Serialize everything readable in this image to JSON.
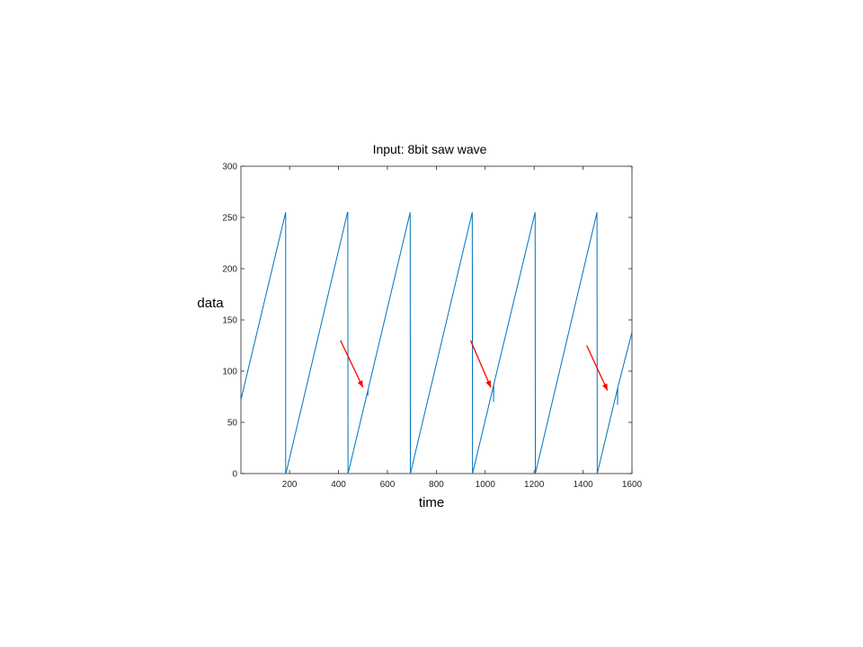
{
  "chart_data": {
    "type": "line",
    "title": "Input:  8bit saw wave",
    "xlabel": "time",
    "ylabel": "data",
    "xlim": [
      1,
      1600
    ],
    "ylim": [
      0,
      300
    ],
    "xticks": [
      200,
      400,
      600,
      800,
      1000,
      1200,
      1400,
      1600
    ],
    "yticks": [
      0,
      50,
      100,
      150,
      200,
      250,
      300
    ],
    "grid": false,
    "series": [
      {
        "color": "#0072bd",
        "x": [
          1,
          184,
          184,
          186,
          437,
          438,
          439,
          520,
          520,
          521,
          693,
          694,
          695,
          947,
          948,
          949,
          1034,
          1034,
          1035,
          1204,
          1205,
          1206,
          1457,
          1458,
          1459,
          1541,
          1541,
          1542,
          1600
        ],
        "y": [
          72,
          255,
          0,
          1,
          255,
          255,
          0,
          81,
          76,
          82,
          255,
          0,
          1,
          255,
          0,
          1,
          86,
          70,
          87,
          255,
          0,
          1,
          255,
          0,
          1,
          83,
          67,
          84,
          138
        ]
      }
    ],
    "annotations": [
      {
        "type": "arrow",
        "color": "#ff0000",
        "from": [
          408,
          130
        ],
        "to": [
          500,
          84
        ]
      },
      {
        "type": "arrow",
        "color": "#ff0000",
        "from": [
          940,
          130
        ],
        "to": [
          1023,
          84
        ]
      },
      {
        "type": "arrow",
        "color": "#ff0000",
        "from": [
          1415,
          125
        ],
        "to": [
          1500,
          81
        ]
      }
    ]
  }
}
